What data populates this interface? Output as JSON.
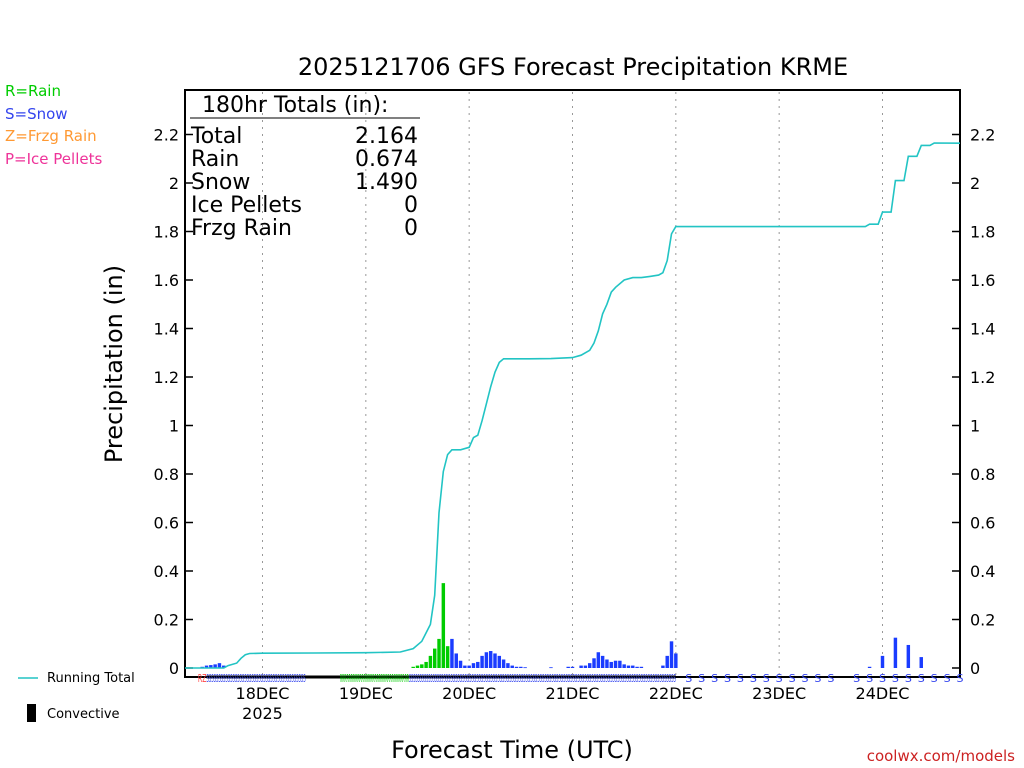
{
  "chart_data": {
    "type": "bar",
    "title": "2025121706 GFS Forecast Precipitation KRME",
    "ylabel": "Precipitation (in)",
    "xlabel": "Forecast Time (UTC)",
    "ylim": [
      0,
      2.4
    ],
    "yticks": [
      0,
      0.2,
      0.4,
      0.6,
      0.8,
      1,
      1.2,
      1.4,
      1.6,
      1.8,
      2,
      2.2
    ],
    "ytick_labels": [
      "0",
      "0.2",
      "0.4",
      "0.6",
      "0.8",
      "1",
      "1.2",
      "1.4",
      "1.6",
      "1.8",
      "2",
      "2.2"
    ],
    "xlim_hours": [
      0,
      180
    ],
    "x_ticks": [
      {
        "hour": 18,
        "label": "18DEC",
        "sub": "2025"
      },
      {
        "hour": 42,
        "label": "19DEC",
        "sub": ""
      },
      {
        "hour": 66,
        "label": "20DEC",
        "sub": ""
      },
      {
        "hour": 90,
        "label": "21DEC",
        "sub": ""
      },
      {
        "hour": 114,
        "label": "22DEC",
        "sub": ""
      },
      {
        "hour": 138,
        "label": "23DEC",
        "sub": ""
      },
      {
        "hour": 162,
        "label": "24DEC",
        "sub": ""
      }
    ],
    "legend_types": [
      {
        "label": "R=Rain",
        "color": "#00cc00"
      },
      {
        "label": "S=Snow",
        "color": "#3344ee"
      },
      {
        "label": "Z=Frzg Rain",
        "color": "#ff9933"
      },
      {
        "label": "P=Ice Pellets",
        "color": "#ee3399"
      }
    ],
    "legend_lines": {
      "running_total": "Running Total",
      "convective": "Convective"
    },
    "totals": {
      "header": "180hr Totals (in):",
      "rows": [
        {
          "label": "Total",
          "value": "2.164"
        },
        {
          "label": "Rain",
          "value": "0.674"
        },
        {
          "label": "Snow",
          "value": "1.490"
        },
        {
          "label": "Ice Pellets",
          "value": "0"
        },
        {
          "label": "Frzg Rain",
          "value": "0"
        }
      ]
    },
    "credit": "coolwx.com/models",
    "colors": {
      "rain": "#00cc00",
      "snow": "#1a3cff",
      "running_total": "#22c4c4",
      "frz": "#ff9933",
      "ice": "#ee3399"
    },
    "series": [
      {
        "name": "Rain (3-hr bars)",
        "points": [
          [
            53,
            0.005
          ],
          [
            54,
            0.01
          ],
          [
            55,
            0.015
          ],
          [
            56,
            0.025
          ],
          [
            57,
            0.05
          ],
          [
            58,
            0.08
          ],
          [
            59,
            0.12
          ],
          [
            60,
            0.35
          ],
          [
            61,
            0.09
          ]
        ]
      },
      {
        "name": "Snow (3-hr bars)",
        "points": [
          [
            4,
            0.005
          ],
          [
            5,
            0.01
          ],
          [
            6,
            0.012
          ],
          [
            7,
            0.015
          ],
          [
            8,
            0.02
          ],
          [
            9,
            0.01
          ],
          [
            62,
            0.12
          ],
          [
            63,
            0.06
          ],
          [
            64,
            0.03
          ],
          [
            65,
            0.01
          ],
          [
            66,
            0.01
          ],
          [
            67,
            0.02
          ],
          [
            68,
            0.025
          ],
          [
            69,
            0.05
          ],
          [
            70,
            0.065
          ],
          [
            71,
            0.07
          ],
          [
            72,
            0.06
          ],
          [
            73,
            0.05
          ],
          [
            74,
            0.035
          ],
          [
            75,
            0.02
          ],
          [
            76,
            0.01
          ],
          [
            77,
            0.005
          ],
          [
            78,
            0.005
          ],
          [
            79,
            0.003
          ],
          [
            85,
            0.003
          ],
          [
            89,
            0.005
          ],
          [
            90,
            0.005
          ],
          [
            92,
            0.01
          ],
          [
            93,
            0.01
          ],
          [
            94,
            0.02
          ],
          [
            95,
            0.04
          ],
          [
            96,
            0.065
          ],
          [
            97,
            0.05
          ],
          [
            98,
            0.035
          ],
          [
            99,
            0.025
          ],
          [
            100,
            0.03
          ],
          [
            101,
            0.03
          ],
          [
            102,
            0.015
          ],
          [
            103,
            0.01
          ],
          [
            104,
            0.01
          ],
          [
            105,
            0.005
          ],
          [
            106,
            0.005
          ],
          [
            111,
            0.01
          ],
          [
            112,
            0.05
          ],
          [
            113,
            0.11
          ],
          [
            114,
            0.06
          ],
          [
            159,
            0.005
          ],
          [
            162,
            0.05
          ],
          [
            165,
            0.125
          ],
          [
            168,
            0.095
          ],
          [
            171,
            0.045
          ]
        ]
      },
      {
        "name": "Running Total",
        "points": [
          [
            0,
            0
          ],
          [
            9,
            0
          ],
          [
            10,
            0.01
          ],
          [
            12,
            0.02
          ],
          [
            13,
            0.04
          ],
          [
            14,
            0.055
          ],
          [
            15,
            0.06
          ],
          [
            18,
            0.061
          ],
          [
            30,
            0.062
          ],
          [
            42,
            0.063
          ],
          [
            50,
            0.066
          ],
          [
            53,
            0.08
          ],
          [
            55,
            0.11
          ],
          [
            57,
            0.18
          ],
          [
            58,
            0.3
          ],
          [
            59,
            0.64
          ],
          [
            60,
            0.81
          ],
          [
            61,
            0.88
          ],
          [
            62,
            0.9
          ],
          [
            64,
            0.9
          ],
          [
            66,
            0.91
          ],
          [
            67,
            0.95
          ],
          [
            68,
            0.96
          ],
          [
            69,
            1.02
          ],
          [
            70,
            1.09
          ],
          [
            71,
            1.16
          ],
          [
            72,
            1.22
          ],
          [
            73,
            1.26
          ],
          [
            74,
            1.275
          ],
          [
            76,
            1.275
          ],
          [
            80,
            1.275
          ],
          [
            85,
            1.276
          ],
          [
            90,
            1.28
          ],
          [
            92,
            1.29
          ],
          [
            94,
            1.31
          ],
          [
            95,
            1.34
          ],
          [
            96,
            1.39
          ],
          [
            97,
            1.46
          ],
          [
            98,
            1.5
          ],
          [
            99,
            1.55
          ],
          [
            100,
            1.57
          ],
          [
            102,
            1.6
          ],
          [
            104,
            1.61
          ],
          [
            106,
            1.61
          ],
          [
            108,
            1.615
          ],
          [
            110,
            1.62
          ],
          [
            111,
            1.63
          ],
          [
            112,
            1.68
          ],
          [
            113,
            1.79
          ],
          [
            114,
            1.82
          ],
          [
            117,
            1.82
          ],
          [
            130,
            1.82
          ],
          [
            150,
            1.82
          ],
          [
            158,
            1.82
          ],
          [
            159,
            1.83
          ],
          [
            161,
            1.83
          ],
          [
            162,
            1.88
          ],
          [
            164,
            1.88
          ],
          [
            165,
            2.01
          ],
          [
            167,
            2.01
          ],
          [
            168,
            2.11
          ],
          [
            170,
            2.11
          ],
          [
            171,
            2.155
          ],
          [
            173,
            2.155
          ],
          [
            174,
            2.165
          ],
          [
            180,
            2.164
          ]
        ]
      }
    ],
    "ptype_row": [
      {
        "from": 3,
        "to": 5,
        "letters": "RZ",
        "color": "#ff4444"
      },
      {
        "from": 5,
        "to": 28,
        "letters": "SSSSSSSSSSSSSSSSSSSSSSSSSSSSSSSSSSSSSSSSSS",
        "color": "#3344ee"
      },
      {
        "from": 36,
        "to": 42,
        "letters": "RRRRRRRRRRRR",
        "color": "#00cc00"
      },
      {
        "from": 42,
        "to": 52,
        "letters": "RRRRRRRRRRRRRRRRRRRR",
        "color": "#00cc00"
      },
      {
        "from": 52,
        "to": 60,
        "letters": "SSSSSSSSSSSSSSSS",
        "color": "#3344ee"
      },
      {
        "from": 60,
        "to": 114,
        "letters": "SSSSSSSSSSSSSSSSSSSSSSSSSSSSSSSSSSSSSSSSSSSSSSSSSSSSSSSSSSSSSSSSSSSSSSSSSSSSSSSSSSSSSSSSSSSSSSSSSSS",
        "color": "#3344ee"
      }
    ],
    "ptype_sparse": {
      "letter": "S",
      "color": "#3344ee",
      "hours": [
        117,
        120,
        123,
        126,
        129,
        132,
        135,
        138,
        141,
        144,
        147,
        150,
        156,
        159,
        162,
        165,
        168,
        171,
        174,
        177,
        180
      ]
    }
  }
}
